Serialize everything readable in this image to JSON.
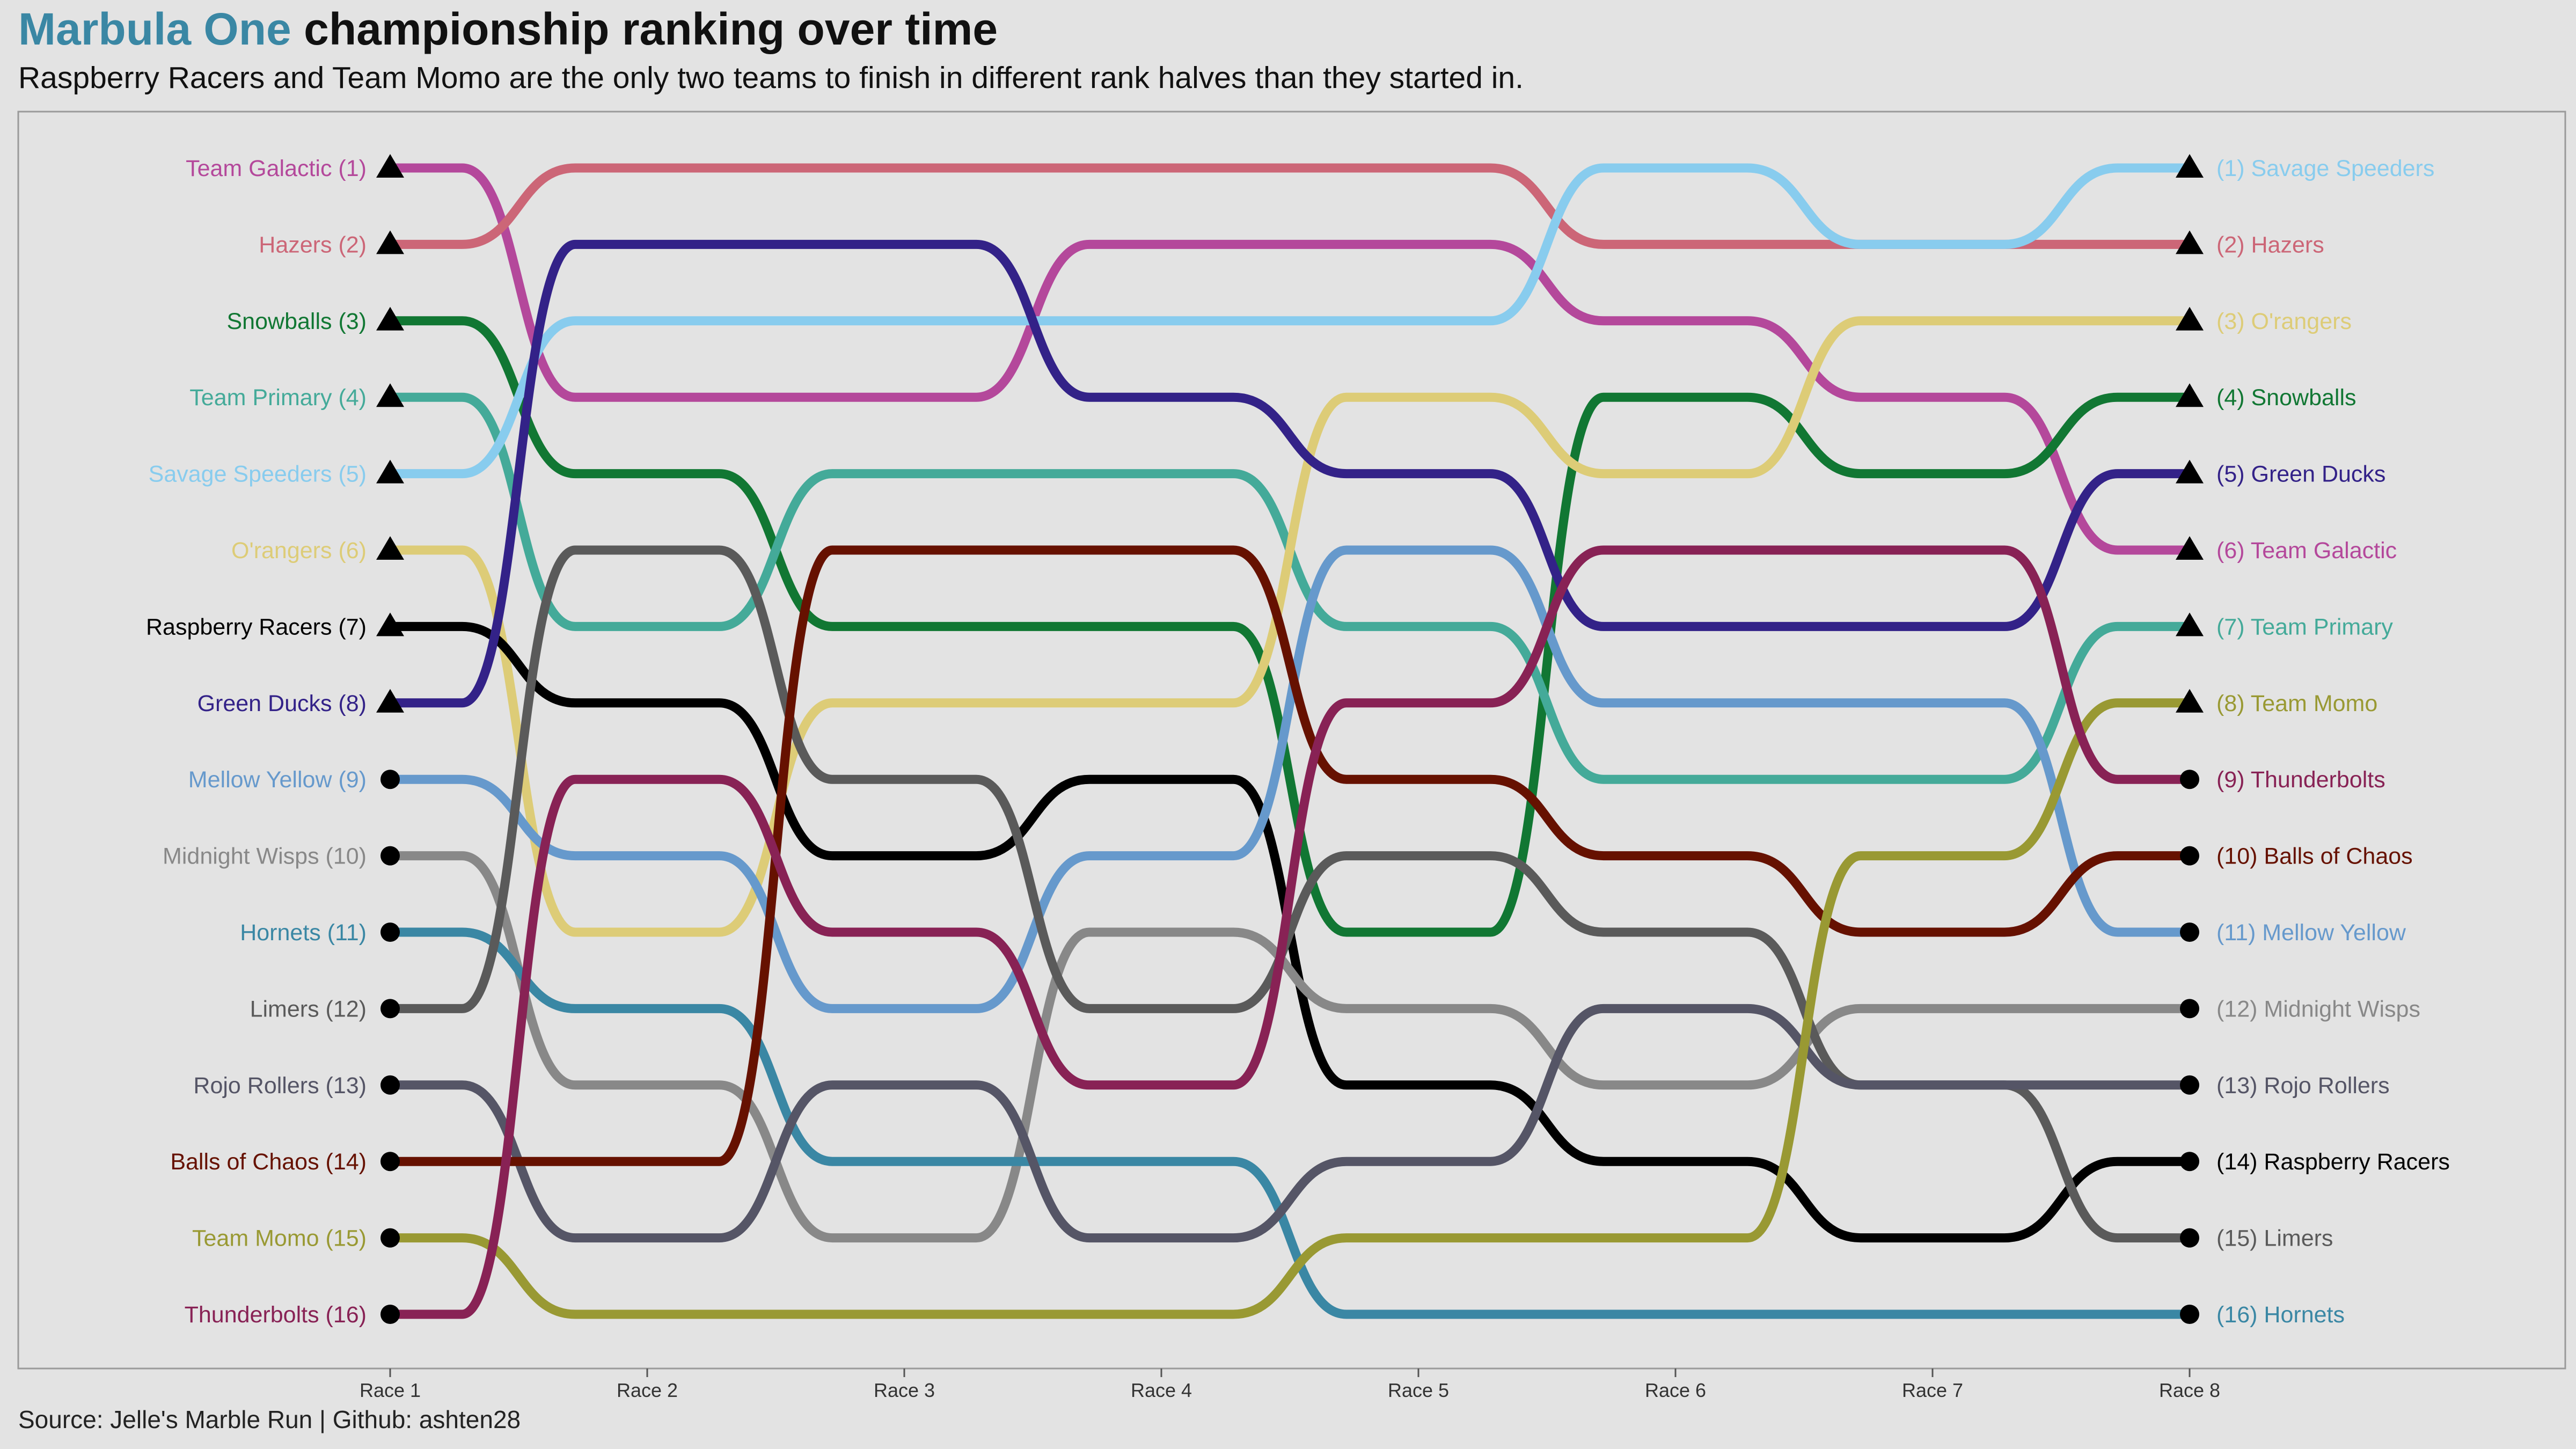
{
  "header": {
    "title_accent": "Marbula One",
    "title_rest": " championship ranking over time",
    "subtitle": "Raspberry Racers and Team Momo are the only two teams to finish in different rank halves than they started in."
  },
  "caption": "Source: Jelle's Marble Run  |  Github: ashten28",
  "chart_data": {
    "type": "line",
    "x": [
      "Race 1",
      "Race 2",
      "Race 3",
      "Race 4",
      "Race 5",
      "Race 6",
      "Race 7",
      "Race 8"
    ],
    "ylim": [
      1,
      16
    ],
    "y_reversed": true,
    "grid": false,
    "legend": "none",
    "marker_legend": {
      "triangle": "top half (rank 1-8)",
      "circle": "bottom half (rank 9-16)"
    },
    "series": [
      {
        "name": "Team Galactic",
        "color": "#b4489b",
        "ranks": [
          1,
          4,
          4,
          2,
          2,
          3,
          4,
          6
        ]
      },
      {
        "name": "Hazers",
        "color": "#cc6677",
        "ranks": [
          2,
          1,
          1,
          1,
          1,
          2,
          2,
          2
        ]
      },
      {
        "name": "Snowballs",
        "color": "#117733",
        "ranks": [
          3,
          5,
          7,
          7,
          11,
          4,
          5,
          4
        ]
      },
      {
        "name": "Team Primary",
        "color": "#44aa99",
        "ranks": [
          4,
          7,
          5,
          5,
          7,
          9,
          9,
          7
        ]
      },
      {
        "name": "Savage Speeders",
        "color": "#88ccee",
        "ranks": [
          5,
          3,
          3,
          3,
          3,
          1,
          2,
          1
        ]
      },
      {
        "name": "O'rangers",
        "color": "#ddcc77",
        "ranks": [
          6,
          11,
          8,
          8,
          4,
          5,
          3,
          3
        ]
      },
      {
        "name": "Raspberry Racers",
        "color": "#000000",
        "ranks": [
          7,
          8,
          10,
          9,
          13,
          14,
          15,
          14
        ]
      },
      {
        "name": "Green Ducks",
        "color": "#332288",
        "ranks": [
          8,
          2,
          2,
          4,
          5,
          7,
          7,
          5
        ]
      },
      {
        "name": "Mellow Yellow",
        "color": "#6699cc",
        "ranks": [
          9,
          10,
          12,
          10,
          6,
          8,
          8,
          11
        ]
      },
      {
        "name": "Midnight Wisps",
        "color": "#888888",
        "ranks": [
          10,
          13,
          15,
          11,
          12,
          13,
          12,
          12
        ]
      },
      {
        "name": "Hornets",
        "color": "#3a87a4",
        "ranks": [
          11,
          12,
          14,
          14,
          16,
          16,
          16,
          16
        ]
      },
      {
        "name": "Limers",
        "color": "#5a5a5a",
        "ranks": [
          12,
          6,
          9,
          12,
          10,
          11,
          13,
          15
        ]
      },
      {
        "name": "Rojo Rollers",
        "color": "#555566",
        "ranks": [
          13,
          15,
          13,
          15,
          14,
          12,
          13,
          13
        ]
      },
      {
        "name": "Balls of Chaos",
        "color": "#661100",
        "ranks": [
          14,
          14,
          6,
          6,
          9,
          10,
          11,
          10
        ]
      },
      {
        "name": "Team Momo",
        "color": "#999933",
        "ranks": [
          15,
          16,
          16,
          16,
          15,
          15,
          10,
          8
        ]
      },
      {
        "name": "Thunderbolts",
        "color": "#882255",
        "ranks": [
          16,
          9,
          11,
          13,
          8,
          6,
          6,
          9
        ]
      }
    ]
  }
}
